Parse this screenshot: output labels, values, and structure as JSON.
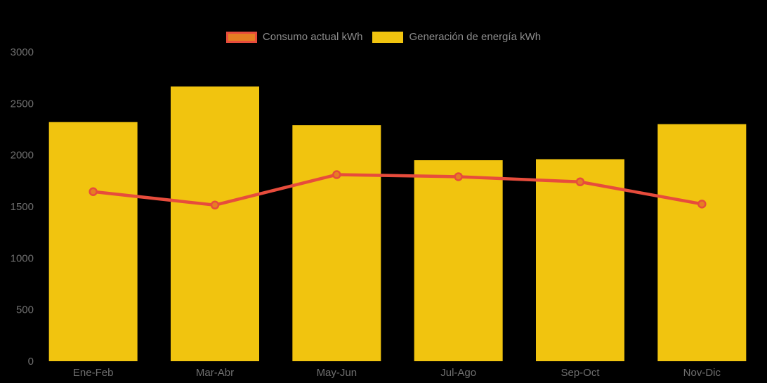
{
  "page": {
    "background": "#000000"
  },
  "legend": {
    "position": "top-center",
    "items": [
      {
        "label": "Consumo actual kWh",
        "swatch_fill": "#e67e22",
        "swatch_border": "#e74c3c"
      },
      {
        "label": "Generación de energía kWh",
        "swatch_fill": "#f1c40f",
        "swatch_border": ""
      }
    ]
  },
  "chart_data": {
    "type": "bar",
    "title": "",
    "xlabel": "",
    "ylabel": "",
    "categories": [
      "Ene-Feb",
      "Mar-Abr",
      "May-Jun",
      "Jul-Ago",
      "Sep-Oct",
      "Nov-Dic"
    ],
    "series": [
      {
        "name": "Consumo actual kWh",
        "type": "line",
        "color": "#e74c3c",
        "marker_fill": "#e67e22",
        "values": [
          1645,
          1515,
          1810,
          1790,
          1740,
          1525
        ]
      },
      {
        "name": "Generación de energía kWh",
        "type": "bar",
        "color": "#f1c40f",
        "values": [
          2320,
          2665,
          2290,
          1950,
          1960,
          2300
        ]
      }
    ],
    "ylim": [
      0,
      3000
    ],
    "yticks": [
      0,
      500,
      1000,
      1500,
      2000,
      2500,
      3000
    ],
    "grid": false,
    "legend_position": "top",
    "background": "#000000",
    "axis_label_color": "#6f6f6f"
  }
}
